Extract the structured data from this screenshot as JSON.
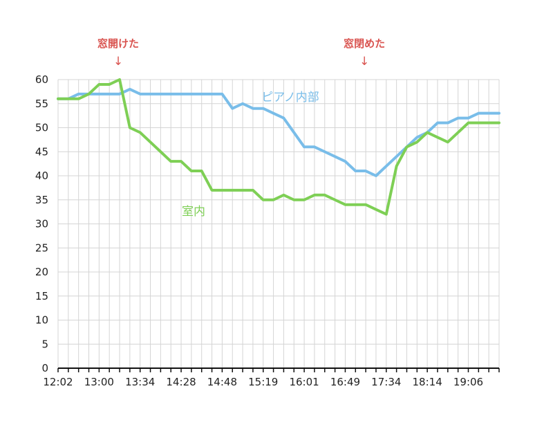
{
  "chart_data": {
    "type": "line",
    "title": "",
    "xlabel": "",
    "ylabel": "",
    "ylim": [
      0,
      60
    ],
    "yticks": [
      0,
      5,
      10,
      15,
      20,
      25,
      30,
      35,
      40,
      45,
      50,
      55,
      60
    ],
    "grid": true,
    "x_tick_labels": [
      {
        "index": 0,
        "label": "12:02"
      },
      {
        "index": 4,
        "label": "13:00"
      },
      {
        "index": 8,
        "label": "13:34"
      },
      {
        "index": 12,
        "label": "14:28"
      },
      {
        "index": 16,
        "label": "14:48"
      },
      {
        "index": 20,
        "label": "15:19"
      },
      {
        "index": 24,
        "label": "16:01"
      },
      {
        "index": 28,
        "label": "16:49"
      },
      {
        "index": 32,
        "label": "17:34"
      },
      {
        "index": 36,
        "label": "18:14"
      },
      {
        "index": 40,
        "label": "19:06"
      }
    ],
    "n_points": 44,
    "series": [
      {
        "name": "ピアノ内部",
        "color": "#79bde9",
        "values": [
          56,
          56,
          57,
          57,
          57,
          57,
          57,
          58,
          57,
          57,
          57,
          57,
          57,
          57,
          57,
          57,
          57,
          54,
          55,
          54,
          54,
          53,
          52,
          49,
          46,
          46,
          45,
          44,
          43,
          41,
          41,
          40,
          42,
          44,
          46,
          48,
          49,
          51,
          51,
          52,
          52,
          53,
          53,
          53
        ]
      },
      {
        "name": "室内",
        "color": "#7ecf55",
        "values": [
          56,
          56,
          56,
          57,
          59,
          59,
          60,
          50,
          49,
          47,
          45,
          43,
          43,
          41,
          41,
          37,
          37,
          37,
          37,
          37,
          35,
          35,
          36,
          35,
          35,
          36,
          36,
          35,
          34,
          34,
          34,
          33,
          32,
          42,
          46,
          47,
          49,
          48,
          47,
          49,
          51,
          51,
          51,
          51
        ]
      }
    ],
    "annotations": [
      {
        "text": "窓開けた",
        "arrow": "↓",
        "index": 6
      },
      {
        "text": "窓閉めた",
        "arrow": "↓",
        "index": 30
      }
    ]
  }
}
